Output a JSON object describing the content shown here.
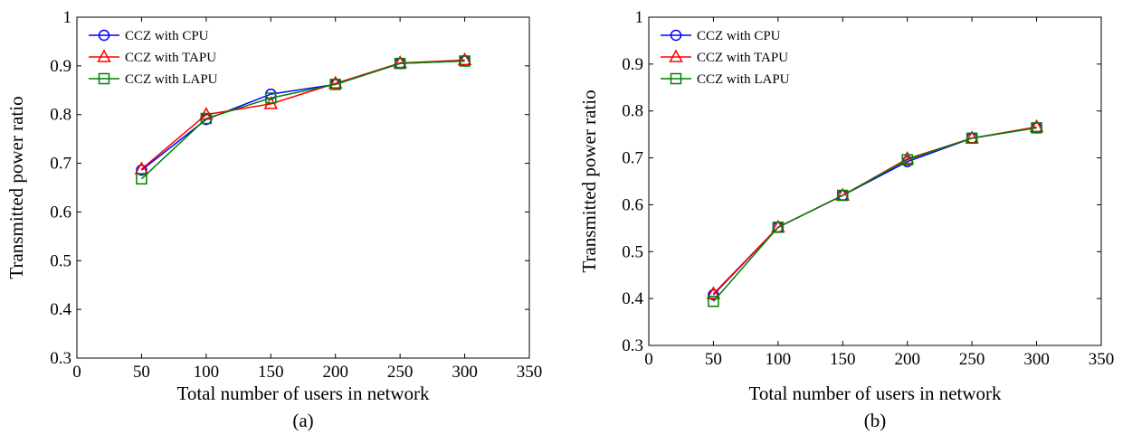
{
  "panels": [
    {
      "caption": "(a)"
    },
    {
      "caption": "(b)"
    }
  ],
  "chart_data": [
    {
      "type": "line",
      "title": "",
      "xlabel": "Total number of users in network",
      "ylabel": "Transmitted power ratio",
      "xlim": [
        0,
        350
      ],
      "ylim": [
        0.3,
        1
      ],
      "xticks": [
        0,
        50,
        100,
        150,
        200,
        250,
        300,
        350
      ],
      "yticks": [
        0.3,
        0.4,
        0.5,
        0.6,
        0.7,
        0.8,
        0.9,
        1
      ],
      "ytick_labels": [
        "0.3",
        "0.4",
        "0.5",
        "0.6",
        "0.7",
        "0.8",
        "0.9",
        "1"
      ],
      "grid": false,
      "legend_position": "top-left",
      "x": [
        50,
        100,
        150,
        200,
        250,
        300
      ],
      "series": [
        {
          "name": "CCZ with CPU",
          "color": "#0000ff",
          "marker": "circle",
          "values": [
            0.686,
            0.79,
            0.842,
            0.862,
            0.905,
            0.91
          ]
        },
        {
          "name": "CCZ with TAPU",
          "color": "#ff0000",
          "marker": "triangle",
          "values": [
            0.688,
            0.8,
            0.822,
            0.864,
            0.906,
            0.912
          ]
        },
        {
          "name": "CCZ with LAPU",
          "color": "#008000",
          "marker": "square",
          "values": [
            0.668,
            0.792,
            0.834,
            0.862,
            0.905,
            0.91
          ]
        }
      ]
    },
    {
      "type": "line",
      "title": "",
      "xlabel": "Total number of users in network",
      "ylabel": "Transmitted power ratio",
      "xlim": [
        0,
        350
      ],
      "ylim": [
        0.3,
        1
      ],
      "xticks": [
        0,
        50,
        100,
        150,
        200,
        250,
        300,
        350
      ],
      "yticks": [
        0.3,
        0.4,
        0.5,
        0.6,
        0.7,
        0.8,
        0.9,
        1
      ],
      "ytick_labels": [
        "0.3",
        "0.4",
        "0.5",
        "0.6",
        "0.7",
        "0.8",
        "0.9",
        "1"
      ],
      "grid": false,
      "legend_position": "top-left",
      "x": [
        50,
        100,
        150,
        200,
        250,
        300
      ],
      "series": [
        {
          "name": "CCZ with CPU",
          "color": "#0000ff",
          "marker": "circle",
          "values": [
            0.408,
            0.552,
            0.62,
            0.692,
            0.742,
            0.764
          ]
        },
        {
          "name": "CCZ with TAPU",
          "color": "#ff0000",
          "marker": "triangle",
          "values": [
            0.41,
            0.552,
            0.62,
            0.698,
            0.742,
            0.766
          ]
        },
        {
          "name": "CCZ with LAPU",
          "color": "#008000",
          "marker": "square",
          "values": [
            0.394,
            0.552,
            0.62,
            0.696,
            0.742,
            0.764
          ]
        }
      ]
    }
  ]
}
